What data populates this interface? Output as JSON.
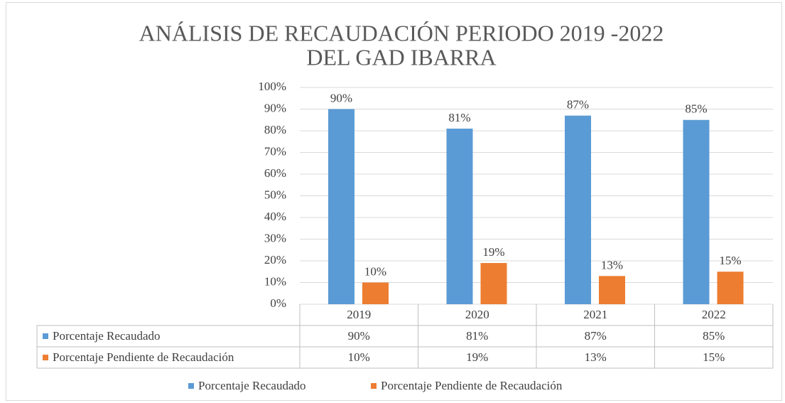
{
  "chart_data": {
    "type": "bar",
    "title_lines": [
      "ANÁLISIS DE RECAUDACIÓN PERIODO 2019 -2022",
      "DEL GAD IBARRA"
    ],
    "categories": [
      "2019",
      "2020",
      "2021",
      "2022"
    ],
    "series": [
      {
        "name": "Porcentaje Recaudado",
        "color": "#5b9bd5",
        "values": [
          90,
          81,
          87,
          85
        ],
        "value_labels": [
          "90%",
          "81%",
          "87%",
          "85%"
        ]
      },
      {
        "name": "Porcentaje Pendiente de Recaudación",
        "color": "#ed7d31",
        "values": [
          10,
          19,
          13,
          15
        ],
        "value_labels": [
          "10%",
          "19%",
          "13%",
          "15%"
        ]
      }
    ],
    "ylim": [
      0,
      100
    ],
    "yticks": [
      {
        "value": 0,
        "label": "0%"
      },
      {
        "value": 10,
        "label": "10%"
      },
      {
        "value": 20,
        "label": "20%"
      },
      {
        "value": 30,
        "label": "30%"
      },
      {
        "value": 40,
        "label": "40%"
      },
      {
        "value": 50,
        "label": "50%"
      },
      {
        "value": 60,
        "label": "60%"
      },
      {
        "value": 70,
        "label": "70%"
      },
      {
        "value": 80,
        "label": "80%"
      },
      {
        "value": 90,
        "label": "90%"
      },
      {
        "value": 100,
        "label": "100%"
      }
    ],
    "grid": true,
    "legend": "bottom"
  }
}
